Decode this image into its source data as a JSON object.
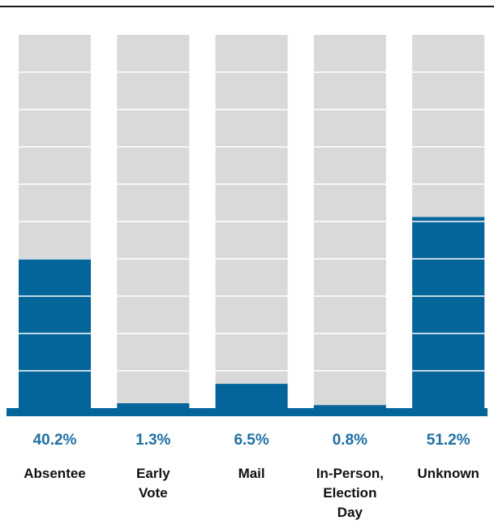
{
  "colors": {
    "bar_fill": "#03659a",
    "track_fill": "#d9d9d9",
    "grid_line": "#ffffff",
    "percent_text": "#1f6fa3",
    "category_text": "#111111",
    "baseline": "#03659a",
    "top_rule": "#1a1a1a"
  },
  "chart_data": {
    "type": "bar",
    "categories": [
      "Absentee",
      "Early Vote",
      "Mail",
      "In-Person, Election Day",
      "Unknown"
    ],
    "category_lines": [
      [
        "Absentee"
      ],
      [
        "Early",
        "Vote"
      ],
      [
        "Mail"
      ],
      [
        "In-Person,",
        "Election",
        "Day"
      ],
      [
        "Unknown"
      ]
    ],
    "values": [
      40.2,
      1.3,
      6.5,
      0.8,
      51.2
    ],
    "value_labels": [
      "40.2%",
      "1.3%",
      "6.5%",
      "0.8%",
      "51.2%"
    ],
    "ylim": [
      0,
      100
    ],
    "grid": true,
    "grid_step": 10,
    "title": "",
    "xlabel": "",
    "ylabel": ""
  }
}
